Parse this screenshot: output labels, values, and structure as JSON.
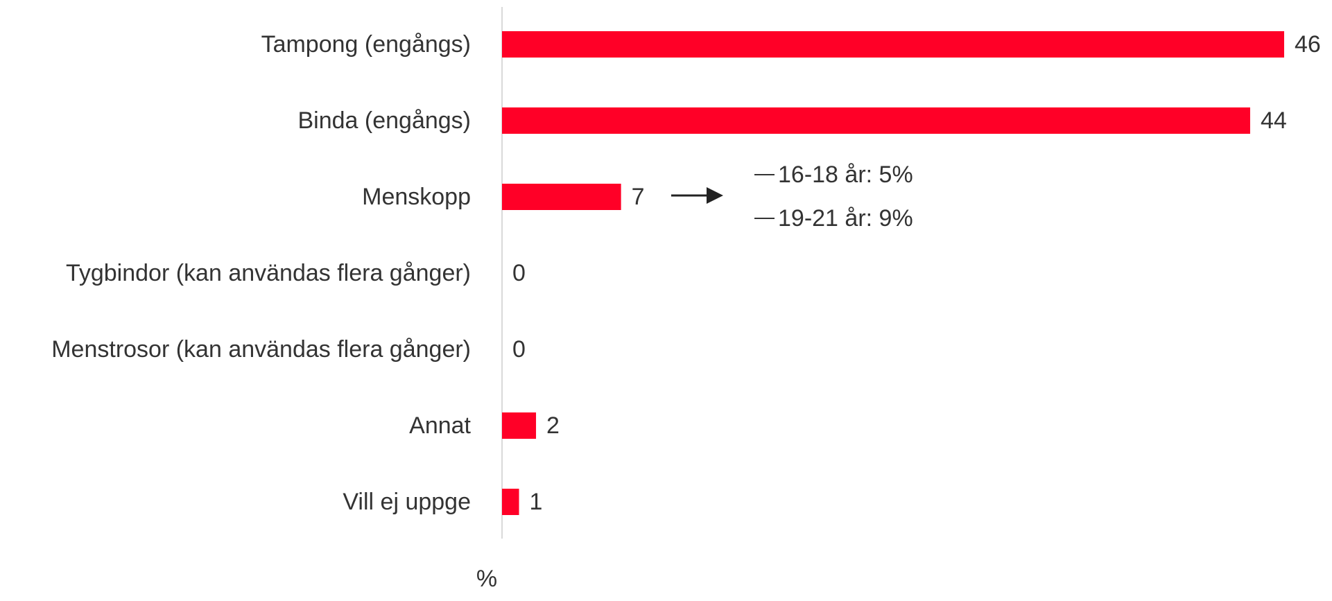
{
  "chart_data": {
    "type": "bar",
    "orientation": "horizontal",
    "categories": [
      "Tampong (engångs)",
      "Binda (engångs)",
      "Menskopp",
      "Tygbindor (kan användas flera gånger)",
      "Menstrosor (kan användas flera gånger)",
      "Annat",
      "Vill ej uppge"
    ],
    "values": [
      46,
      44,
      7,
      0,
      0,
      2,
      1
    ],
    "color": "#ff0027",
    "xlim": [
      0,
      46
    ],
    "xlabel": "%",
    "annotations": [
      "16-18 år: 5%",
      "19-21 år: 9%"
    ]
  }
}
